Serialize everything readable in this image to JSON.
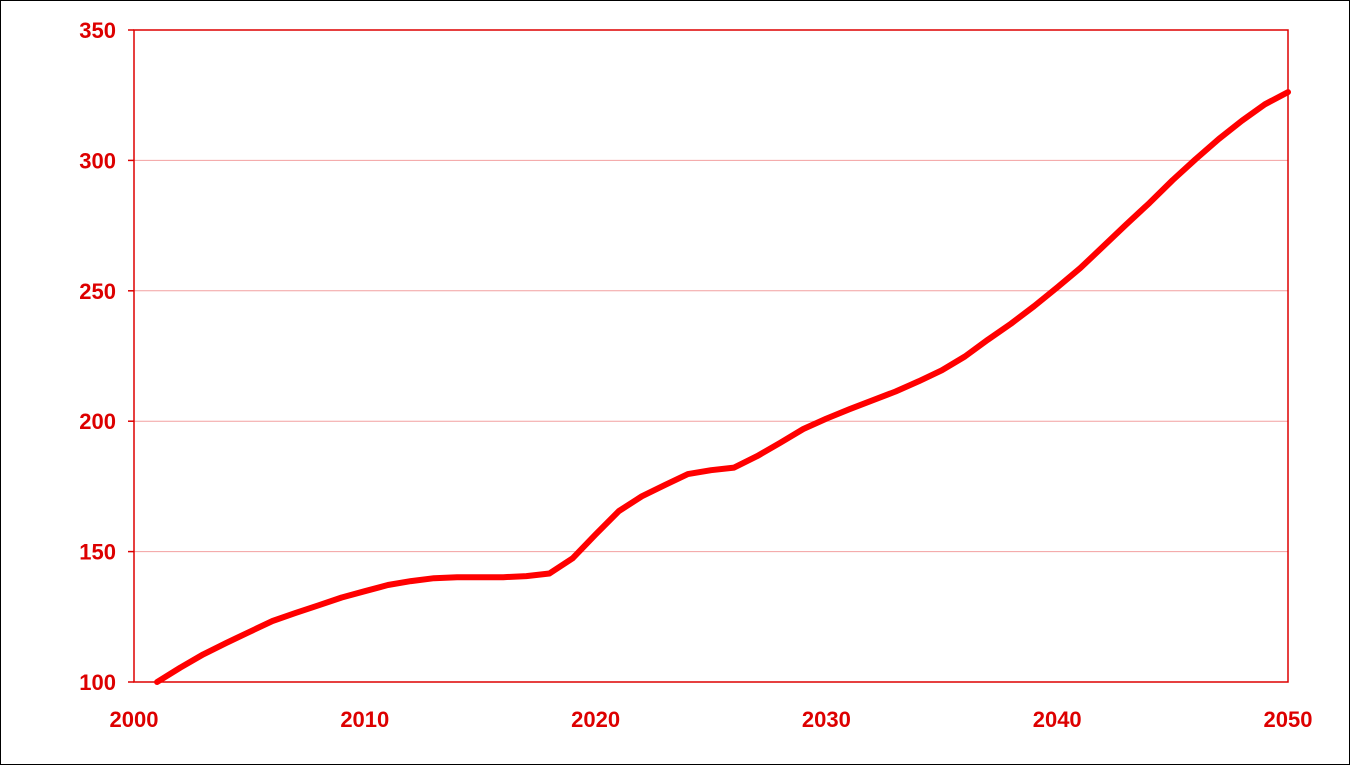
{
  "chart_data": {
    "type": "line",
    "title": "",
    "xlabel": "",
    "ylabel": "",
    "xlim": [
      2000,
      2050
    ],
    "ylim": [
      100,
      350
    ],
    "x_ticks": [
      "2000",
      "2010",
      "2020",
      "2030",
      "2040",
      "2050"
    ],
    "y_ticks": [
      "100",
      "150",
      "200",
      "250",
      "300",
      "350"
    ],
    "grid": "horizontal",
    "legend": "none",
    "colors": {
      "line": "#ff0000",
      "axis": "#dd0000",
      "grid": "#f2a0a0",
      "tick_text": "#dd0000"
    },
    "series": [
      {
        "x": [
          2001,
          2002,
          2003,
          2004,
          2005,
          2006,
          2007,
          2008,
          2009,
          2010,
          2011,
          2012,
          2013,
          2014,
          2015,
          2016,
          2017,
          2018,
          2019,
          2020,
          2021,
          2022,
          2023,
          2024,
          2025,
          2026,
          2027,
          2028,
          2029,
          2030,
          2031,
          2032,
          2033,
          2034,
          2035,
          2036,
          2037,
          2038,
          2039,
          2040,
          2041,
          2042,
          2043,
          2044,
          2045,
          2046,
          2047,
          2048,
          2049,
          2050
        ],
        "values": [
          100,
          105.5,
          110.6,
          115,
          119.2,
          123.4,
          126.5,
          129.4,
          132.4,
          134.8,
          137.2,
          138.7,
          139.8,
          140.2,
          140.2,
          140.2,
          140.6,
          141.6,
          147.4,
          156.6,
          165.5,
          171.2,
          175.5,
          179.7,
          181.2,
          182.2,
          186.6,
          191.7,
          197,
          201,
          204.6,
          208,
          211.4,
          215.3,
          219.5,
          224.8,
          231.3,
          237.4,
          244.1,
          251.3,
          258.7,
          267.1,
          275.5,
          283.7,
          292.4,
          300.5,
          308.2,
          315.2,
          321.5,
          326.2
        ]
      }
    ]
  }
}
